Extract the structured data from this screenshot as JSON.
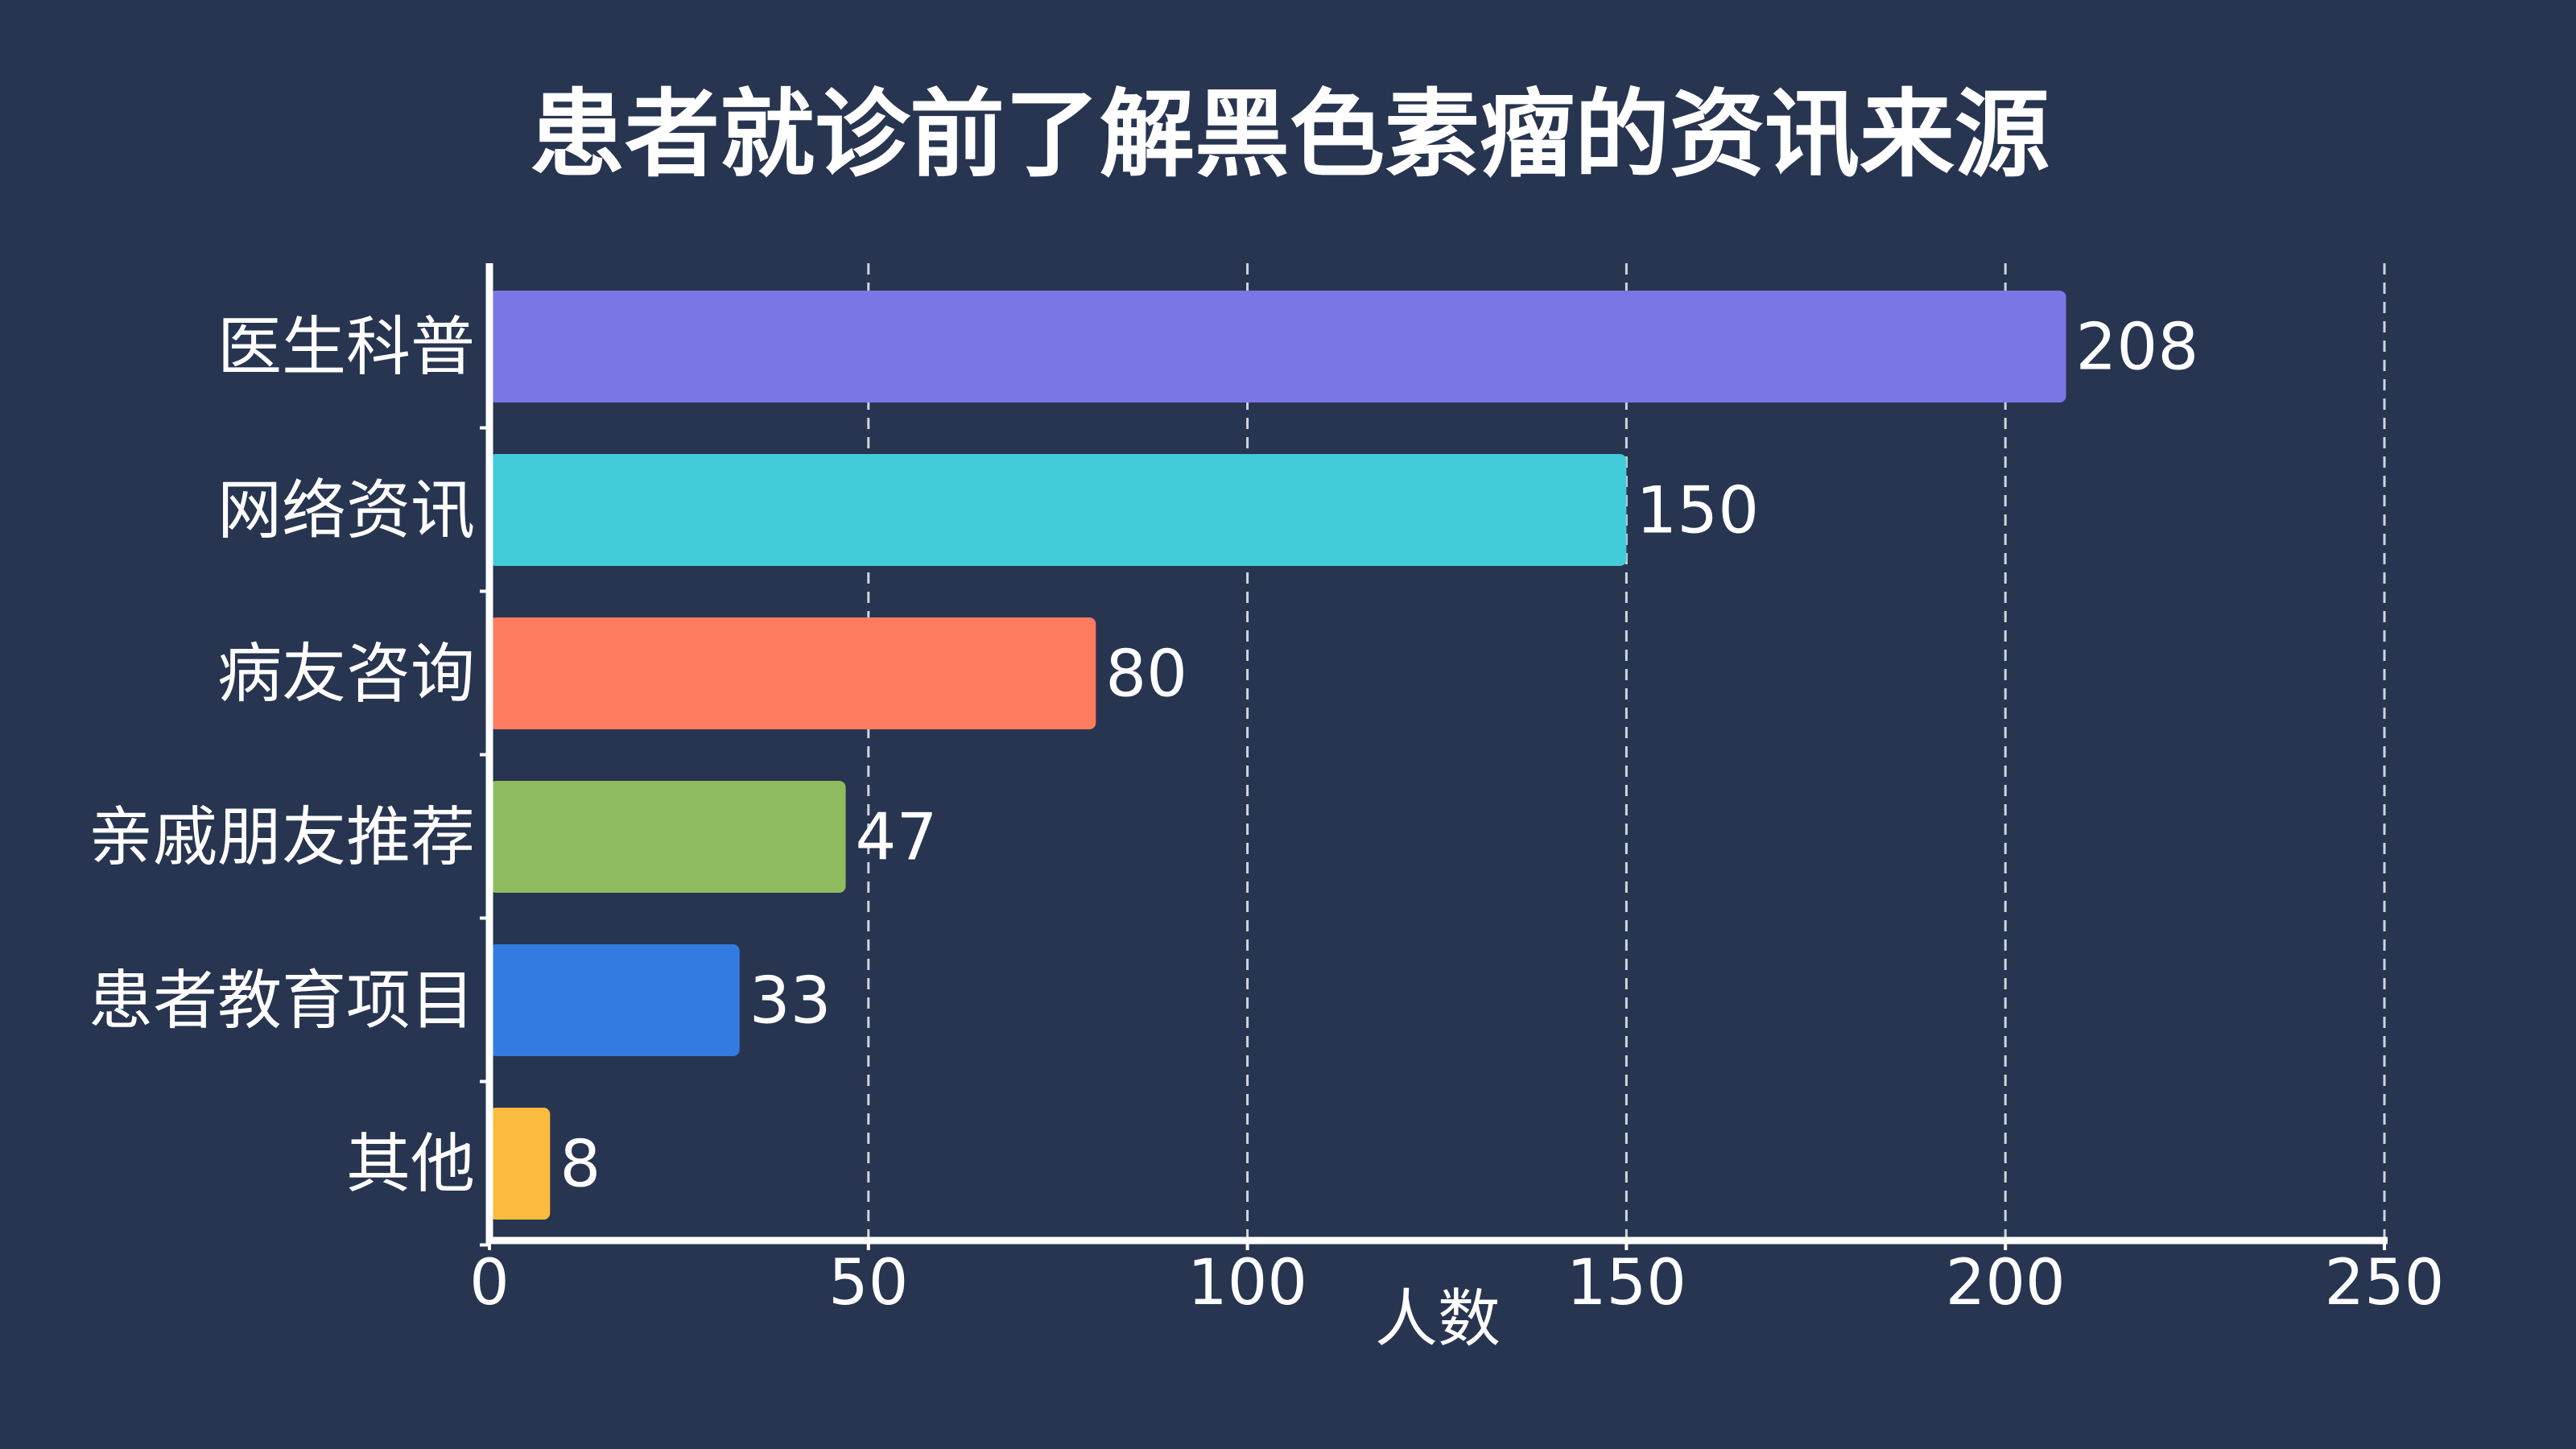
{
  "chart_data": {
    "type": "bar",
    "orientation": "horizontal",
    "title": "患者就诊前了解黑色素瘤的资讯来源",
    "xlabel": "人数",
    "ylabel": "",
    "categories": [
      "医生科普",
      "网络资讯",
      "病友咨询",
      "亲戚朋友推荐",
      "患者教育项目",
      "其他"
    ],
    "values": [
      208,
      150,
      80,
      47,
      33,
      8
    ],
    "colors": [
      "#7B76E6",
      "#42CBD8",
      "#FF7B5F",
      "#8FBC5E",
      "#337BE0",
      "#FBBB3E"
    ],
    "xlim": [
      0,
      250
    ],
    "xticks": [
      "0",
      "50",
      "100",
      "150",
      "200",
      "250"
    ],
    "grid": "vertical dashed",
    "data_labels": true,
    "background": "#283550"
  }
}
